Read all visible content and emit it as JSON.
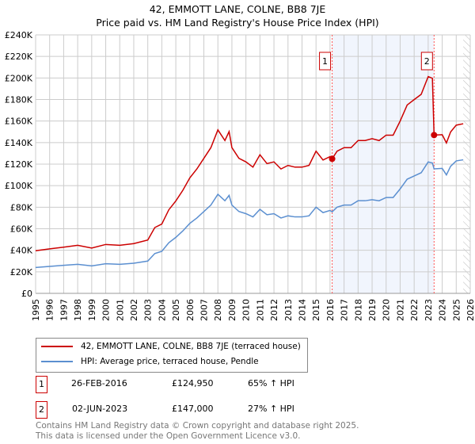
{
  "chart_data": {
    "type": "line",
    "title": "42, EMMOTT LANE, COLNE, BB8 7JE",
    "subtitle": "Price paid vs. HM Land Registry's House Price Index (HPI)",
    "xlim": [
      1995,
      2026
    ],
    "ylim": [
      0,
      240000
    ],
    "grid": true,
    "x_ticks": [
      "1995",
      "1996",
      "1997",
      "1998",
      "1999",
      "2000",
      "2001",
      "2002",
      "2003",
      "2004",
      "2005",
      "2006",
      "2007",
      "2008",
      "2009",
      "2010",
      "2011",
      "2012",
      "2013",
      "2014",
      "2015",
      "2016",
      "2017",
      "2018",
      "2019",
      "2020",
      "2021",
      "2022",
      "2023",
      "2024",
      "2025",
      "2026"
    ],
    "y_ticks": [
      "£0",
      "£20K",
      "£40K",
      "£60K",
      "£80K",
      "£100K",
      "£120K",
      "£140K",
      "£160K",
      "£180K",
      "£200K",
      "£220K",
      "£240K"
    ],
    "series": [
      {
        "name": "42, EMMOTT LANE, COLNE, BB8 7JE (terraced house)",
        "color": "#cc0000",
        "x": [
          1995,
          1996,
          1997,
          1998,
          1999,
          2000,
          2001,
          2002,
          2003,
          2003.5,
          2004,
          2004.5,
          2005,
          2005.5,
          2006,
          2006.5,
          2007,
          2007.5,
          2008,
          2008.5,
          2008.8,
          2009,
          2009.5,
          2010,
          2010.5,
          2011,
          2011.5,
          2012,
          2012.5,
          2013,
          2013.5,
          2014,
          2014.5,
          2015,
          2015.5,
          2016,
          2016.15,
          2016.5,
          2017,
          2017.5,
          2018,
          2018.5,
          2019,
          2019.5,
          2020,
          2020.5,
          2021,
          2021.5,
          2022,
          2022.5,
          2023,
          2023.3,
          2023.42,
          2024,
          2024.3,
          2024.6,
          2025,
          2025.5
        ],
        "y": [
          39600,
          41300,
          42900,
          44600,
          42100,
          45400,
          44600,
          46200,
          49500,
          61100,
          64400,
          77600,
          85800,
          95700,
          107300,
          115500,
          125400,
          135300,
          151800,
          141900,
          150200,
          135300,
          125400,
          122100,
          117200,
          128700,
          120500,
          122100,
          115500,
          118800,
          117200,
          117200,
          118800,
          132000,
          123800,
          127000,
          124950,
          132000,
          135300,
          135300,
          141900,
          141900,
          143600,
          141900,
          146900,
          146900,
          160000,
          174900,
          179900,
          184800,
          201300,
          199700,
          147000,
          147300,
          139700,
          149900,
          156200,
          157500
        ]
      },
      {
        "name": "HPI: Average price, terraced house, Pendle",
        "color": "#5b8fd0",
        "x": [
          1995,
          1996,
          1997,
          1998,
          1999,
          2000,
          2001,
          2002,
          2003,
          2003.5,
          2004,
          2004.5,
          2005,
          2005.5,
          2006,
          2006.5,
          2007,
          2007.5,
          2008,
          2008.5,
          2008.8,
          2009,
          2009.5,
          2010,
          2010.5,
          2011,
          2011.5,
          2012,
          2012.5,
          2013,
          2013.5,
          2014,
          2014.5,
          2015,
          2015.5,
          2016,
          2016.15,
          2016.5,
          2017,
          2017.5,
          2018,
          2018.5,
          2019,
          2019.5,
          2020,
          2020.5,
          2021,
          2021.5,
          2022,
          2022.5,
          2023,
          2023.3,
          2023.42,
          2024,
          2024.3,
          2024.6,
          2025,
          2025.5
        ],
        "y": [
          24000,
          25000,
          26000,
          27000,
          25500,
          27500,
          27000,
          28000,
          30000,
          37000,
          39000,
          47000,
          52000,
          58000,
          65000,
          70000,
          76000,
          82000,
          92000,
          86000,
          91000,
          82000,
          76000,
          74000,
          71000,
          78000,
          73000,
          74000,
          70000,
          72000,
          71000,
          71000,
          72000,
          80000,
          75000,
          77000,
          75700,
          80000,
          82000,
          82000,
          86000,
          86000,
          87000,
          86000,
          89000,
          89000,
          97000,
          106000,
          109000,
          112000,
          122000,
          121000,
          115600,
          116000,
          110000,
          118000,
          123000,
          124000
        ]
      }
    ],
    "annotations": [
      {
        "label": "1",
        "x": 2016.15,
        "y": 124950
      },
      {
        "label": "2",
        "x": 2023.42,
        "y": 147000
      }
    ],
    "shaded_range": [
      2016.15,
      2023.42
    ],
    "hatched_from": 2025.5,
    "legend_placement": "bottom"
  },
  "sales": [
    {
      "num": "1",
      "date": "26-FEB-2016",
      "price": "£124,950",
      "hpi": "65% ↑ HPI"
    },
    {
      "num": "2",
      "date": "02-JUN-2023",
      "price": "£147,000",
      "hpi": "27% ↑ HPI"
    }
  ],
  "footer": {
    "line1": "Contains HM Land Registry data © Crown copyright and database right 2025.",
    "line2": "This data is licensed under the Open Government Licence v3.0."
  }
}
